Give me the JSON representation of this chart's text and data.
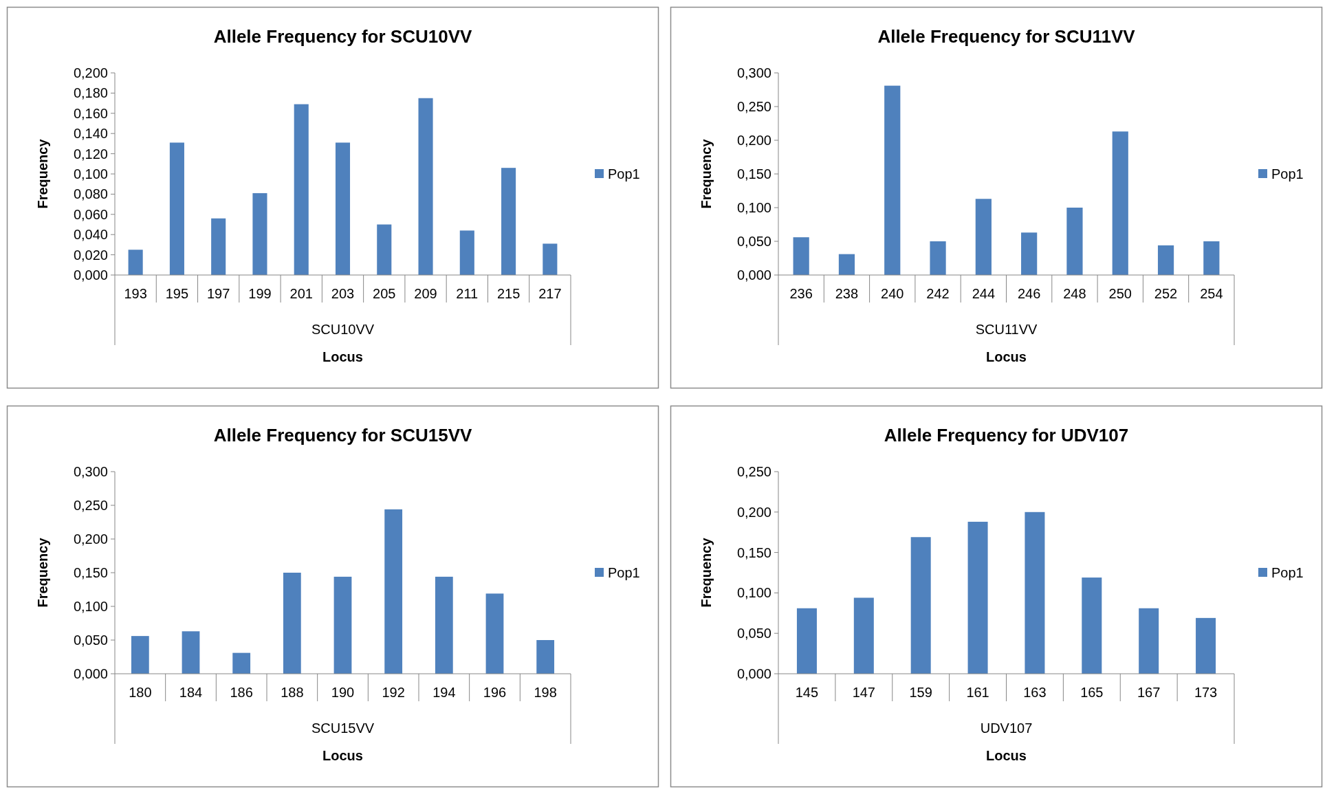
{
  "chart_data": [
    {
      "type": "bar",
      "title": "Allele Frequency for SCU10VV",
      "xlabel": "Locus",
      "ylabel": "Frequency",
      "annotations": [
        "SCU10VV"
      ],
      "legend": "right",
      "categories": [
        "193",
        "195",
        "197",
        "199",
        "201",
        "203",
        "205",
        "209",
        "211",
        "215",
        "217"
      ],
      "series": [
        {
          "name": "Pop1",
          "color": "#4f81bd",
          "values": [
            0.025,
            0.131,
            0.056,
            0.081,
            0.169,
            0.131,
            0.05,
            0.175,
            0.044,
            0.106,
            0.031
          ]
        }
      ],
      "ylim": [
        0,
        0.2
      ],
      "yticks": [
        {
          "value": 0,
          "label": "0,000"
        },
        {
          "value": 0.02,
          "label": "0,020"
        },
        {
          "value": 0.04,
          "label": "0,040"
        },
        {
          "value": 0.06,
          "label": "0,060"
        },
        {
          "value": 0.08,
          "label": "0,080"
        },
        {
          "value": 0.1,
          "label": "0,100"
        },
        {
          "value": 0.12,
          "label": "0,120"
        },
        {
          "value": 0.14,
          "label": "0,140"
        },
        {
          "value": 0.16,
          "label": "0,160"
        },
        {
          "value": 0.18,
          "label": "0,180"
        },
        {
          "value": 0.2,
          "label": "0,200"
        }
      ]
    },
    {
      "type": "bar",
      "title": "Allele Frequency for SCU11VV",
      "xlabel": "Locus",
      "ylabel": "Frequency",
      "annotations": [
        "SCU11VV"
      ],
      "legend": "right",
      "categories": [
        "236",
        "238",
        "240",
        "242",
        "244",
        "246",
        "248",
        "250",
        "252",
        "254"
      ],
      "series": [
        {
          "name": "Pop1",
          "color": "#4f81bd",
          "values": [
            0.056,
            0.031,
            0.281,
            0.05,
            0.113,
            0.063,
            0.1,
            0.213,
            0.044,
            0.05
          ]
        }
      ],
      "ylim": [
        0,
        0.3
      ],
      "yticks": [
        {
          "value": 0,
          "label": "0,000"
        },
        {
          "value": 0.05,
          "label": "0,050"
        },
        {
          "value": 0.1,
          "label": "0,100"
        },
        {
          "value": 0.15,
          "label": "0,150"
        },
        {
          "value": 0.2,
          "label": "0,200"
        },
        {
          "value": 0.25,
          "label": "0,250"
        },
        {
          "value": 0.3,
          "label": "0,300"
        }
      ]
    },
    {
      "type": "bar",
      "title": "Allele Frequency for SCU15VV",
      "xlabel": "Locus",
      "ylabel": "Frequency",
      "annotations": [
        "SCU15VV"
      ],
      "legend": "right",
      "categories": [
        "180",
        "184",
        "186",
        "188",
        "190",
        "192",
        "194",
        "196",
        "198"
      ],
      "series": [
        {
          "name": "Pop1",
          "color": "#4f81bd",
          "values": [
            0.056,
            0.063,
            0.031,
            0.15,
            0.144,
            0.244,
            0.144,
            0.119,
            0.05
          ]
        }
      ],
      "ylim": [
        0,
        0.3
      ],
      "yticks": [
        {
          "value": 0,
          "label": "0,000"
        },
        {
          "value": 0.05,
          "label": "0,050"
        },
        {
          "value": 0.1,
          "label": "0,100"
        },
        {
          "value": 0.15,
          "label": "0,150"
        },
        {
          "value": 0.2,
          "label": "0,200"
        },
        {
          "value": 0.25,
          "label": "0,250"
        },
        {
          "value": 0.3,
          "label": "0,300"
        }
      ]
    },
    {
      "type": "bar",
      "title": "Allele Frequency for UDV107",
      "xlabel": "Locus",
      "ylabel": "Frequency",
      "annotations": [
        "UDV107"
      ],
      "legend": "right",
      "categories": [
        "145",
        "147",
        "159",
        "161",
        "163",
        "165",
        "167",
        "173"
      ],
      "series": [
        {
          "name": "Pop1",
          "color": "#4f81bd",
          "values": [
            0.081,
            0.094,
            0.169,
            0.188,
            0.2,
            0.119,
            0.081,
            0.069
          ]
        }
      ],
      "ylim": [
        0,
        0.25
      ],
      "yticks": [
        {
          "value": 0,
          "label": "0,000"
        },
        {
          "value": 0.05,
          "label": "0,050"
        },
        {
          "value": 0.1,
          "label": "0,100"
        },
        {
          "value": 0.15,
          "label": "0,150"
        },
        {
          "value": 0.2,
          "label": "0,200"
        },
        {
          "value": 0.25,
          "label": "0,250"
        }
      ]
    }
  ]
}
